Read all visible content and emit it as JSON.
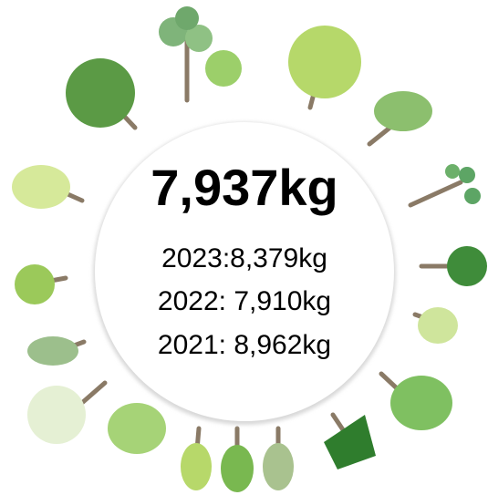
{
  "headline": "7,937kg",
  "history": [
    "2023:8,379kg",
    "2022: 7,910kg",
    "2021: 8,962kg"
  ]
}
